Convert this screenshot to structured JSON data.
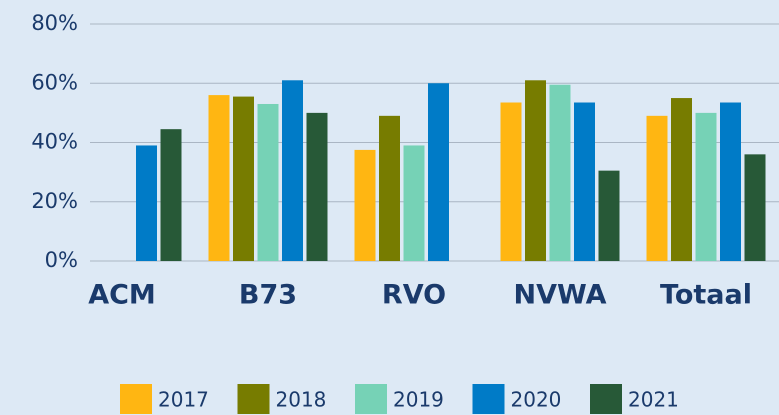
{
  "chart_data": {
    "type": "bar",
    "categories": [
      "ACM",
      "B73",
      "RVO",
      "NVWA",
      "Totaal"
    ],
    "series": [
      {
        "name": "2017",
        "color": "#ffb612",
        "values": [
          null,
          56,
          37.5,
          53.5,
          49
        ]
      },
      {
        "name": "2018",
        "color": "#777c00",
        "values": [
          null,
          55.5,
          49,
          61,
          55
        ]
      },
      {
        "name": "2019",
        "color": "#76d2b6",
        "values": [
          null,
          53,
          39,
          59.5,
          50
        ]
      },
      {
        "name": "2020",
        "color": "#007bc7",
        "values": [
          39,
          61,
          60,
          53.5,
          53.5
        ]
      },
      {
        "name": "2021",
        "color": "#275937",
        "values": [
          44.5,
          50,
          null,
          30.5,
          36
        ]
      }
    ],
    "ylim": [
      0,
      80
    ],
    "yticks": [
      {
        "value": 0,
        "label": "0%"
      },
      {
        "value": 20,
        "label": "20%"
      },
      {
        "value": 40,
        "label": "40%"
      },
      {
        "value": 60,
        "label": "60%"
      },
      {
        "value": 80,
        "label": "80%"
      }
    ],
    "grid": true,
    "legend": "bottom"
  }
}
